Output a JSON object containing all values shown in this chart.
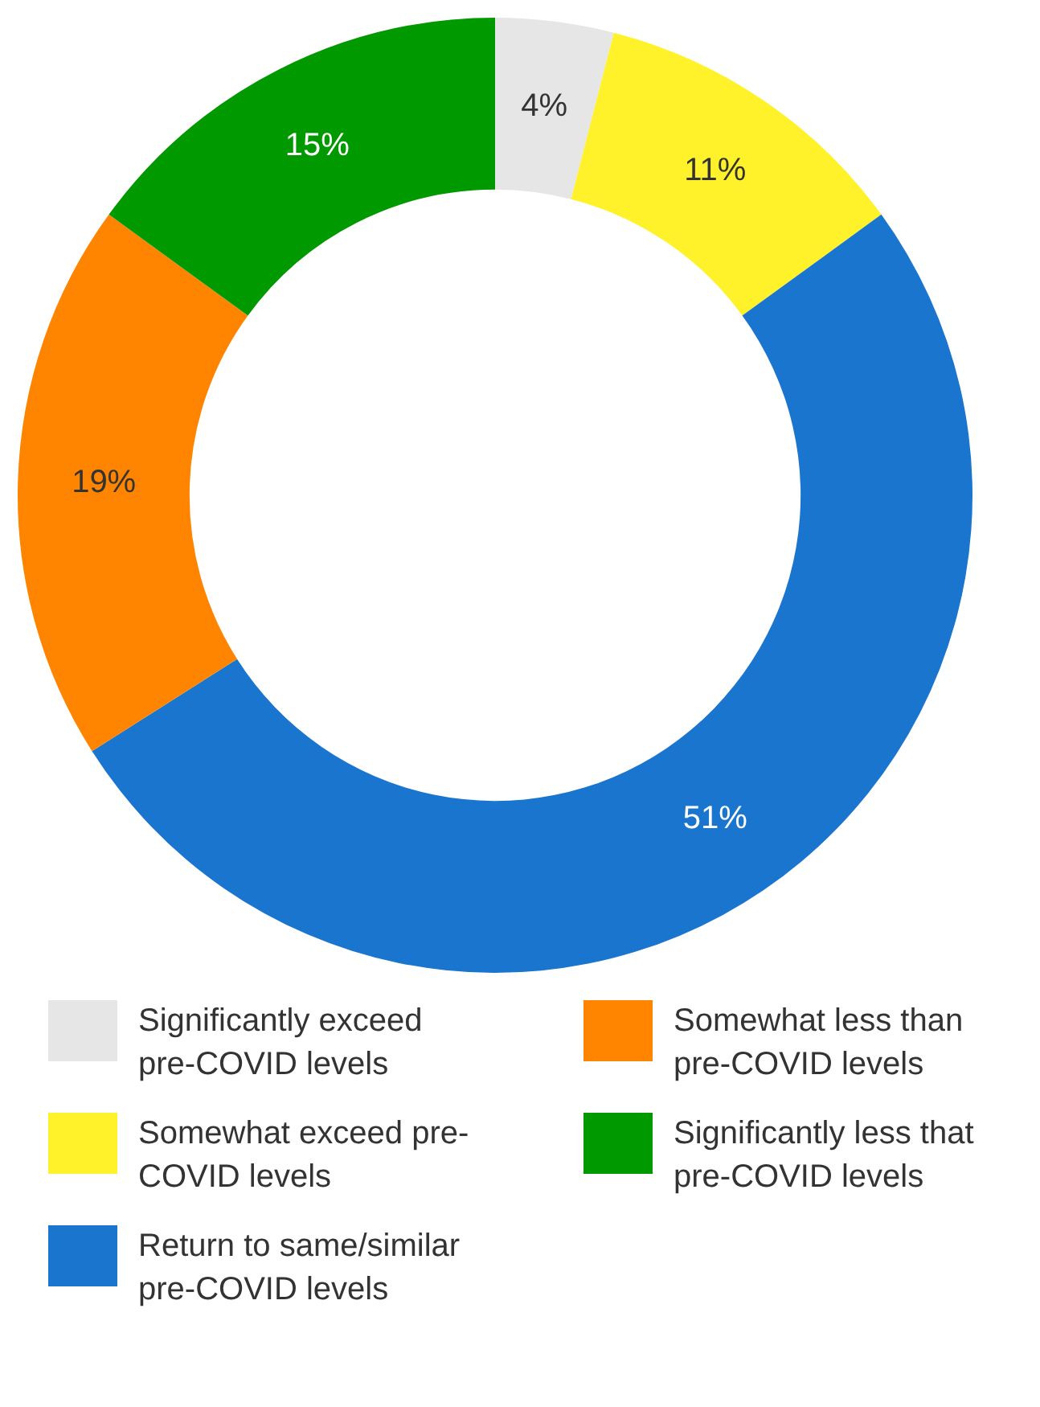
{
  "chart_data": {
    "type": "donut",
    "categories": [
      "Significantly exceed pre-COVID levels",
      "Somewhat exceed pre-COVID levels",
      "Return to same/similar pre-COVID levels",
      "Somewhat less than pre-COVID levels",
      "Significantly less that pre-COVID levels"
    ],
    "values": [
      4,
      11,
      51,
      19,
      15
    ],
    "colors": [
      "#e6e6e6",
      "#fff22a",
      "#1a75cf",
      "#ff8400",
      "#009a00"
    ],
    "value_labels": [
      "4%",
      "11%",
      "51%",
      "19%",
      "15%"
    ],
    "legend": "bottom"
  }
}
